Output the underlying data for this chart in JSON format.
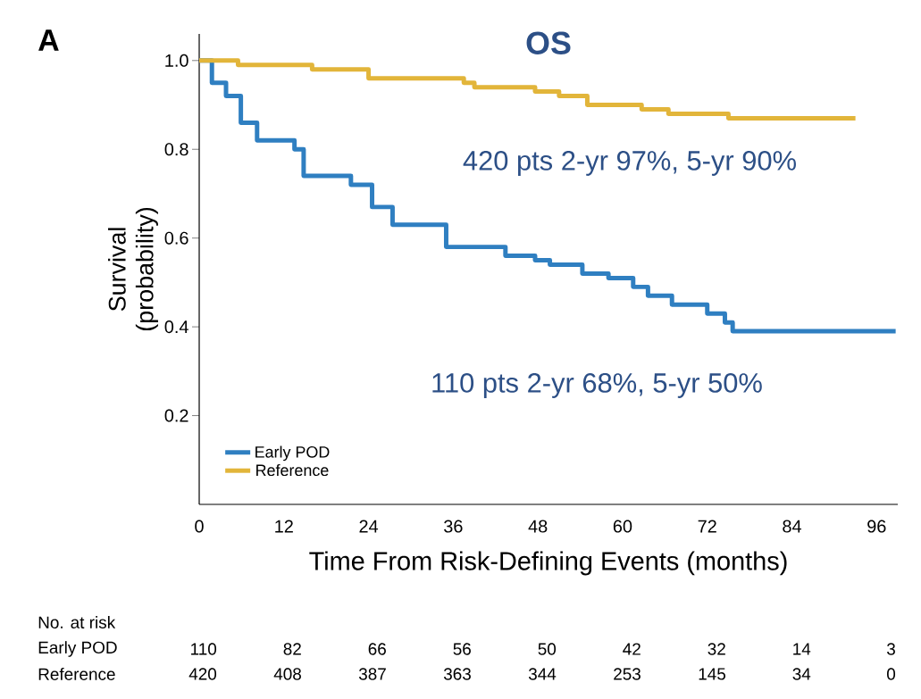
{
  "chart_data": {
    "type": "step",
    "title": "OS",
    "xlabel": "Time From Risk-Defining Events (months)",
    "ylabel": "Survival (probability)",
    "xlim": [
      0,
      99
    ],
    "ylim": [
      0,
      1.06
    ],
    "xticks": [
      0,
      12,
      24,
      36,
      48,
      60,
      72,
      84,
      96
    ],
    "yticks": [
      {
        "value": 0.2,
        "label": "0.2"
      },
      {
        "value": 0.4,
        "label": "0.4"
      },
      {
        "value": 0.6,
        "label": "0.6"
      },
      {
        "value": 0.8,
        "label": "0.8"
      },
      {
        "value": 1.0,
        "label": "1.0"
      }
    ],
    "legend": "bottom left",
    "line_style": "solid",
    "series": [
      {
        "name": "Early POD",
        "color": "#2f7fc1",
        "x": [
          0,
          1.8,
          3.8,
          5.9,
          8.2,
          13.5,
          14.8,
          21.5,
          24.5,
          27.4,
          35,
          43.4,
          47.6,
          49.7,
          54.3,
          58,
          61.5,
          63.6,
          67,
          72,
          74.5,
          75.6,
          98.7
        ],
        "values": [
          1.0,
          0.95,
          0.92,
          0.86,
          0.82,
          0.8,
          0.74,
          0.72,
          0.67,
          0.63,
          0.58,
          0.56,
          0.55,
          0.54,
          0.52,
          0.51,
          0.49,
          0.47,
          0.45,
          0.43,
          0.41,
          0.39,
          0.39
        ]
      },
      {
        "name": "Reference",
        "color": "#e2b53a",
        "x": [
          0,
          5.5,
          16,
          19,
          24,
          35,
          37.5,
          39,
          47.6,
          51,
          55,
          62.7,
          66.5,
          75,
          93
        ],
        "values": [
          1.0,
          0.99,
          0.98,
          0.98,
          0.96,
          0.96,
          0.95,
          0.94,
          0.93,
          0.92,
          0.9,
          0.89,
          0.88,
          0.87,
          0.87
        ]
      }
    ],
    "annotations": [
      "A",
      "420 pts 2-yr 97%, 5-yr 90%",
      "110 pts 2-yr 68%, 5-yr 50%",
      "No. at risk",
      "Early POD",
      "110",
      "82",
      "66",
      "56",
      "50",
      "42",
      "32",
      "14",
      "3",
      "Reference",
      "420",
      "408",
      "387",
      "363",
      "344",
      "253",
      "145",
      "34",
      "0"
    ]
  }
}
